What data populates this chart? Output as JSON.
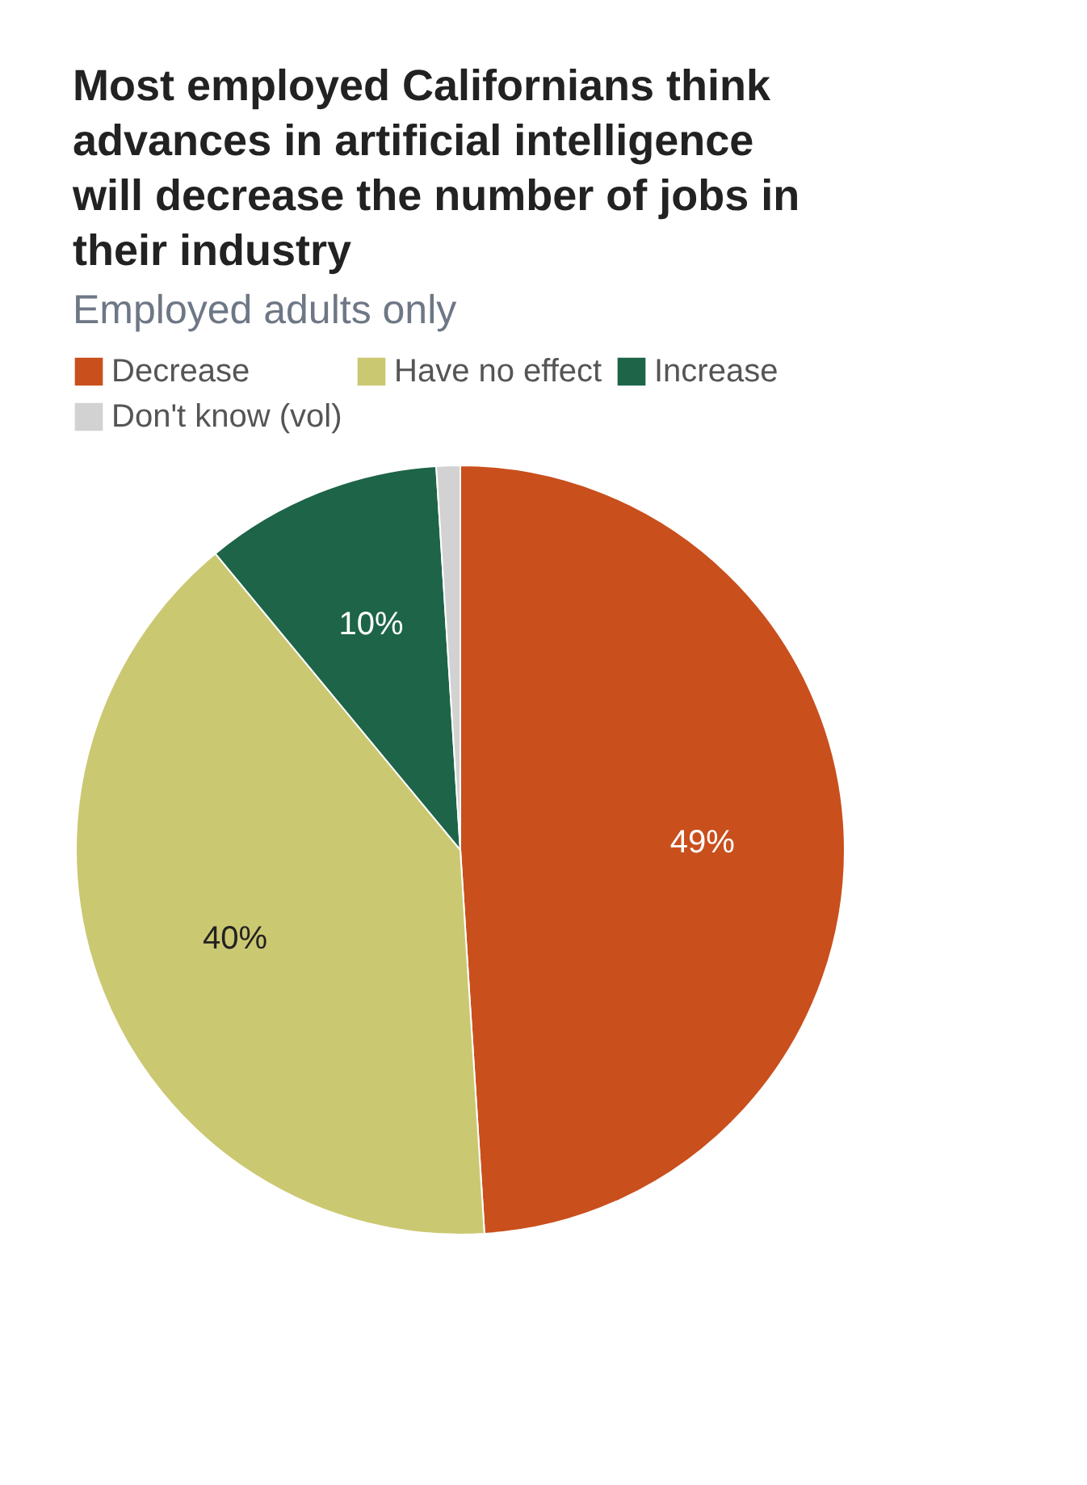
{
  "chart_data": {
    "type": "pie",
    "title": "Most employed Californians think advances in artificial intelligence will decrease the number of jobs in their industry",
    "subtitle": "Employed adults only",
    "categories": [
      "Decrease",
      "Have no effect",
      "Increase",
      "Don't know (vol)"
    ],
    "values": [
      49,
      40,
      10,
      1
    ],
    "colors": [
      "#c94f1d",
      "#cbc872",
      "#1d6448",
      "#d2d2d2"
    ],
    "value_labels": [
      "49%",
      "40%",
      "10%",
      null
    ],
    "legend": "top"
  }
}
